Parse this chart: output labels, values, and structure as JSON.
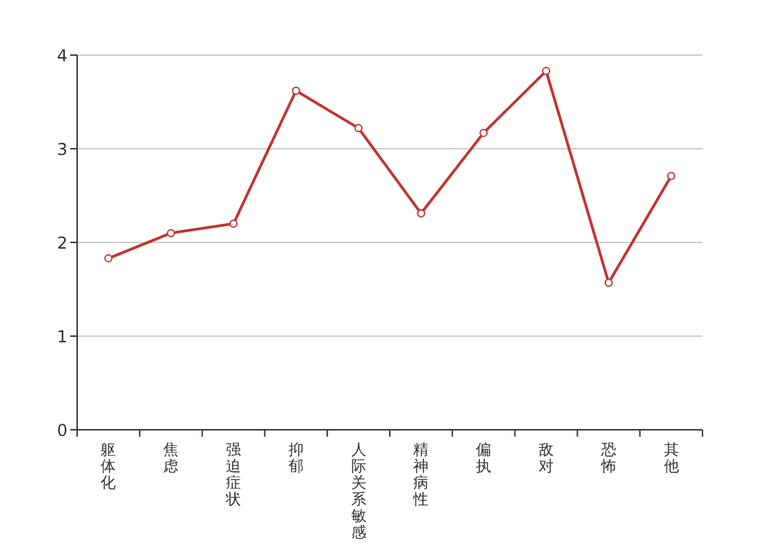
{
  "chart_data": {
    "type": "line",
    "categories": [
      "躯体化",
      "焦虑",
      "强迫症状",
      "抑郁",
      "人际关系敏感",
      "精神病性",
      "偏执",
      "敌对",
      "恐怖",
      "其他"
    ],
    "values": [
      1.83,
      2.1,
      2.2,
      3.62,
      3.22,
      2.31,
      3.17,
      3.83,
      1.57,
      2.71
    ],
    "color": "#c23531",
    "ylim": [
      0,
      4
    ],
    "yticks": [
      0,
      1,
      2,
      3,
      4
    ],
    "grid": "y",
    "marker": "circle"
  }
}
